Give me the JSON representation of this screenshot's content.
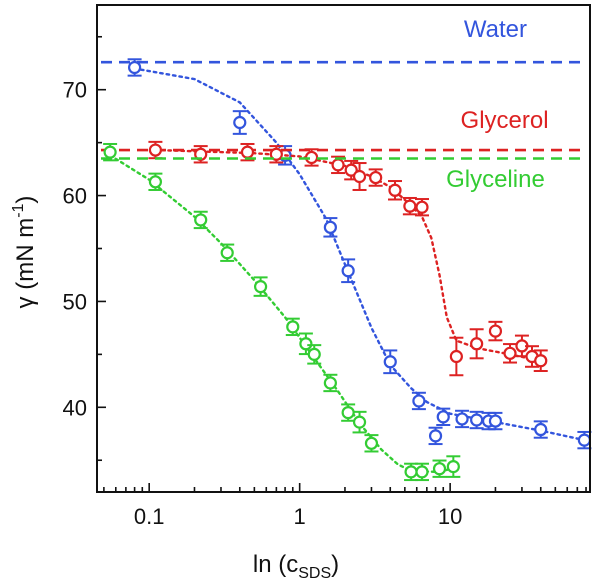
{
  "chart_data": {
    "type": "scatter",
    "xlabel": "ln (c",
    "xlabel_sub": "SDS",
    "xlabel_end": ")",
    "ylabel": "γ (mN m",
    "ylabel_sup": "-1",
    "ylabel_end": ")",
    "xscale": "log",
    "xlim": [
      0.045,
      85
    ],
    "ylim": [
      32,
      78
    ],
    "xticks": [
      {
        "value": 0.1,
        "label": "0.1"
      },
      {
        "value": 1,
        "label": "1"
      },
      {
        "value": 10,
        "label": "10"
      }
    ],
    "yticks": [
      {
        "value": 40,
        "label": "40"
      },
      {
        "value": 50,
        "label": "50"
      },
      {
        "value": 60,
        "label": "60"
      },
      {
        "value": 70,
        "label": "70"
      }
    ],
    "series": [
      {
        "name": "Water",
        "color": "#3355dd",
        "reference_y": 72.6,
        "label_anchor": {
          "x": 20,
          "y": 75.0
        },
        "points": [
          {
            "x": 0.08,
            "y": 72.1,
            "err": 0.3
          },
          {
            "x": 0.4,
            "y": 66.9,
            "err": 0.6
          },
          {
            "x": 0.8,
            "y": 63.8,
            "err": 0.4
          },
          {
            "x": 1.6,
            "y": 57.0,
            "err": 0.4
          },
          {
            "x": 2.1,
            "y": 52.9,
            "err": 0.6
          },
          {
            "x": 4.0,
            "y": 44.3,
            "err": 0.6
          },
          {
            "x": 6.2,
            "y": 40.6,
            "err": 0.3
          },
          {
            "x": 8.0,
            "y": 37.3,
            "err": 0.3
          },
          {
            "x": 9.0,
            "y": 39.1,
            "err": 0.3
          },
          {
            "x": 12.0,
            "y": 38.9,
            "err": 0.3
          },
          {
            "x": 15.0,
            "y": 38.8,
            "err": 0.3
          },
          {
            "x": 18.0,
            "y": 38.7,
            "err": 0.3
          },
          {
            "x": 20.0,
            "y": 38.7,
            "err": 0.3
          },
          {
            "x": 40.0,
            "y": 37.9,
            "err": 0.3
          },
          {
            "x": 78.0,
            "y": 36.9,
            "err": 0.3
          }
        ],
        "fit": [
          [
            0.08,
            72.0
          ],
          [
            0.2,
            71.0
          ],
          [
            0.4,
            68.8
          ],
          [
            0.7,
            65.0
          ],
          [
            1.0,
            62.0
          ],
          [
            1.5,
            57.8
          ],
          [
            2.0,
            53.5
          ],
          [
            3.0,
            47.5
          ],
          [
            4.0,
            44.0
          ],
          [
            5.5,
            41.8
          ],
          [
            7.0,
            40.5
          ],
          [
            10.0,
            39.4
          ],
          [
            20.0,
            38.6
          ],
          [
            40.0,
            37.8
          ],
          [
            78.0,
            36.9
          ]
        ]
      },
      {
        "name": "Glycerol",
        "color": "#dd2222",
        "reference_y": 64.3,
        "label_anchor": {
          "x": 23,
          "y": 66.4
        },
        "points": [
          {
            "x": 0.11,
            "y": 64.3,
            "err": 0.3
          },
          {
            "x": 0.22,
            "y": 63.9,
            "err": 0.3
          },
          {
            "x": 0.45,
            "y": 64.1,
            "err": 0.3
          },
          {
            "x": 0.7,
            "y": 63.9,
            "err": 0.3
          },
          {
            "x": 1.2,
            "y": 63.6,
            "err": 0.3
          },
          {
            "x": 1.8,
            "y": 62.9,
            "err": 0.3
          },
          {
            "x": 2.2,
            "y": 62.4,
            "err": 0.4
          },
          {
            "x": 2.5,
            "y": 61.8,
            "err": 0.8
          },
          {
            "x": 3.2,
            "y": 61.7,
            "err": 0.3
          },
          {
            "x": 4.3,
            "y": 60.5,
            "err": 0.4
          },
          {
            "x": 5.4,
            "y": 59.0,
            "err": 0.3
          },
          {
            "x": 6.5,
            "y": 58.9,
            "err": 0.3
          },
          {
            "x": 11.0,
            "y": 44.8,
            "err": 1.3
          },
          {
            "x": 15.0,
            "y": 46.0,
            "err": 0.9
          },
          {
            "x": 20.0,
            "y": 47.2,
            "err": 0.4
          },
          {
            "x": 25.0,
            "y": 45.1,
            "err": 0.4
          },
          {
            "x": 30.0,
            "y": 45.8,
            "err": 0.5
          },
          {
            "x": 35.0,
            "y": 44.8,
            "err": 0.5
          },
          {
            "x": 40.0,
            "y": 44.4,
            "err": 0.5
          }
        ],
        "fit": [
          [
            0.11,
            64.3
          ],
          [
            0.5,
            64.0
          ],
          [
            1.0,
            63.7
          ],
          [
            2.0,
            62.8
          ],
          [
            3.0,
            61.8
          ],
          [
            4.0,
            60.8
          ],
          [
            5.0,
            59.6
          ],
          [
            6.5,
            58.0
          ],
          [
            7.5,
            56.0
          ],
          [
            8.5,
            52.5
          ],
          [
            9.5,
            48.5
          ],
          [
            11.0,
            46.3
          ],
          [
            15.0,
            45.6
          ],
          [
            25.0,
            45.0
          ],
          [
            40.0,
            44.4
          ]
        ]
      },
      {
        "name": "Glyceline",
        "color": "#33cc33",
        "reference_y": 63.5,
        "label_anchor": {
          "x": 20,
          "y": 60.8
        },
        "points": [
          {
            "x": 0.055,
            "y": 64.1,
            "err": 0.3
          },
          {
            "x": 0.11,
            "y": 61.3,
            "err": 0.3
          },
          {
            "x": 0.22,
            "y": 57.7,
            "err": 0.3
          },
          {
            "x": 0.33,
            "y": 54.6,
            "err": 0.3
          },
          {
            "x": 0.55,
            "y": 51.4,
            "err": 0.4
          },
          {
            "x": 0.9,
            "y": 47.6,
            "err": 0.3
          },
          {
            "x": 1.1,
            "y": 46.0,
            "err": 0.5
          },
          {
            "x": 1.25,
            "y": 45.0,
            "err": 0.4
          },
          {
            "x": 1.6,
            "y": 42.3,
            "err": 0.3
          },
          {
            "x": 2.1,
            "y": 39.5,
            "err": 0.3
          },
          {
            "x": 2.5,
            "y": 38.6,
            "err": 0.5
          },
          {
            "x": 3.0,
            "y": 36.6,
            "err": 0.3
          },
          {
            "x": 5.5,
            "y": 33.9,
            "err": 0.3
          },
          {
            "x": 6.5,
            "y": 33.9,
            "err": 0.3
          },
          {
            "x": 8.5,
            "y": 34.2,
            "err": 0.3
          },
          {
            "x": 10.5,
            "y": 34.4,
            "err": 0.5
          }
        ],
        "fit": [
          [
            0.055,
            63.8
          ],
          [
            0.1,
            61.5
          ],
          [
            0.2,
            58.0
          ],
          [
            0.3,
            55.5
          ],
          [
            0.5,
            52.0
          ],
          [
            0.8,
            48.5
          ],
          [
            1.2,
            45.0
          ],
          [
            1.8,
            41.5
          ],
          [
            2.5,
            38.5
          ],
          [
            3.5,
            36.0
          ],
          [
            4.5,
            34.6
          ],
          [
            5.5,
            34.0
          ],
          [
            8.0,
            33.9
          ],
          [
            10.5,
            34.2
          ]
        ]
      }
    ]
  }
}
